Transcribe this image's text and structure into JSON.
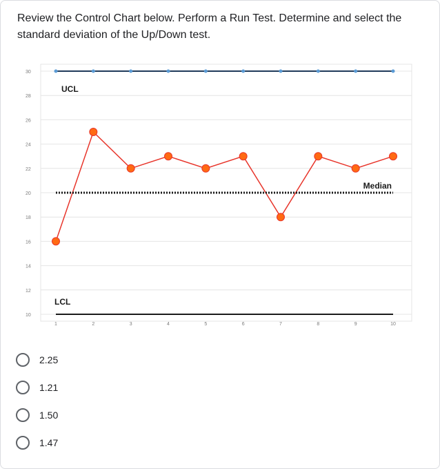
{
  "question": {
    "text": "Review the Control Chart below. Perform a Run Test. Determine and select the standard deviation of the Up/Down test."
  },
  "chart_data": {
    "type": "line",
    "x": [
      1,
      2,
      3,
      4,
      5,
      6,
      7,
      8,
      9,
      10
    ],
    "xticks": [
      "1",
      "2",
      "3",
      "4",
      "5",
      "6",
      "7",
      "8",
      "9",
      "10"
    ],
    "yticks": [
      "30",
      "28",
      "26",
      "24",
      "22",
      "20",
      "18",
      "16",
      "14",
      "12",
      "10"
    ],
    "ylim": [
      10,
      30
    ],
    "grid": true,
    "series": [
      {
        "values": [
          16,
          25,
          22,
          23,
          22,
          23,
          18,
          23,
          22,
          23
        ],
        "color": "#e8352b",
        "marker_color": "#ff6a13"
      },
      {
        "name": "UCL",
        "values": [
          30,
          30,
          30,
          30,
          30,
          30,
          30,
          30,
          30,
          30
        ],
        "color": "#1f3a5a",
        "marker_color": "#5b9bd5"
      },
      {
        "name": "Median",
        "values": [
          20,
          20,
          20,
          20,
          20,
          20,
          20,
          20,
          20,
          20
        ],
        "color": "#1a1a1a",
        "style": "dotted"
      },
      {
        "name": "LCL",
        "values": [
          10,
          10,
          10,
          10,
          10,
          10,
          10,
          10,
          10,
          10
        ],
        "color": "#1a1a1a"
      }
    ]
  },
  "options": [
    {
      "label": "2.25",
      "selected": false
    },
    {
      "label": "1.21",
      "selected": false
    },
    {
      "label": "1.50",
      "selected": false
    },
    {
      "label": "1.47",
      "selected": false
    }
  ]
}
